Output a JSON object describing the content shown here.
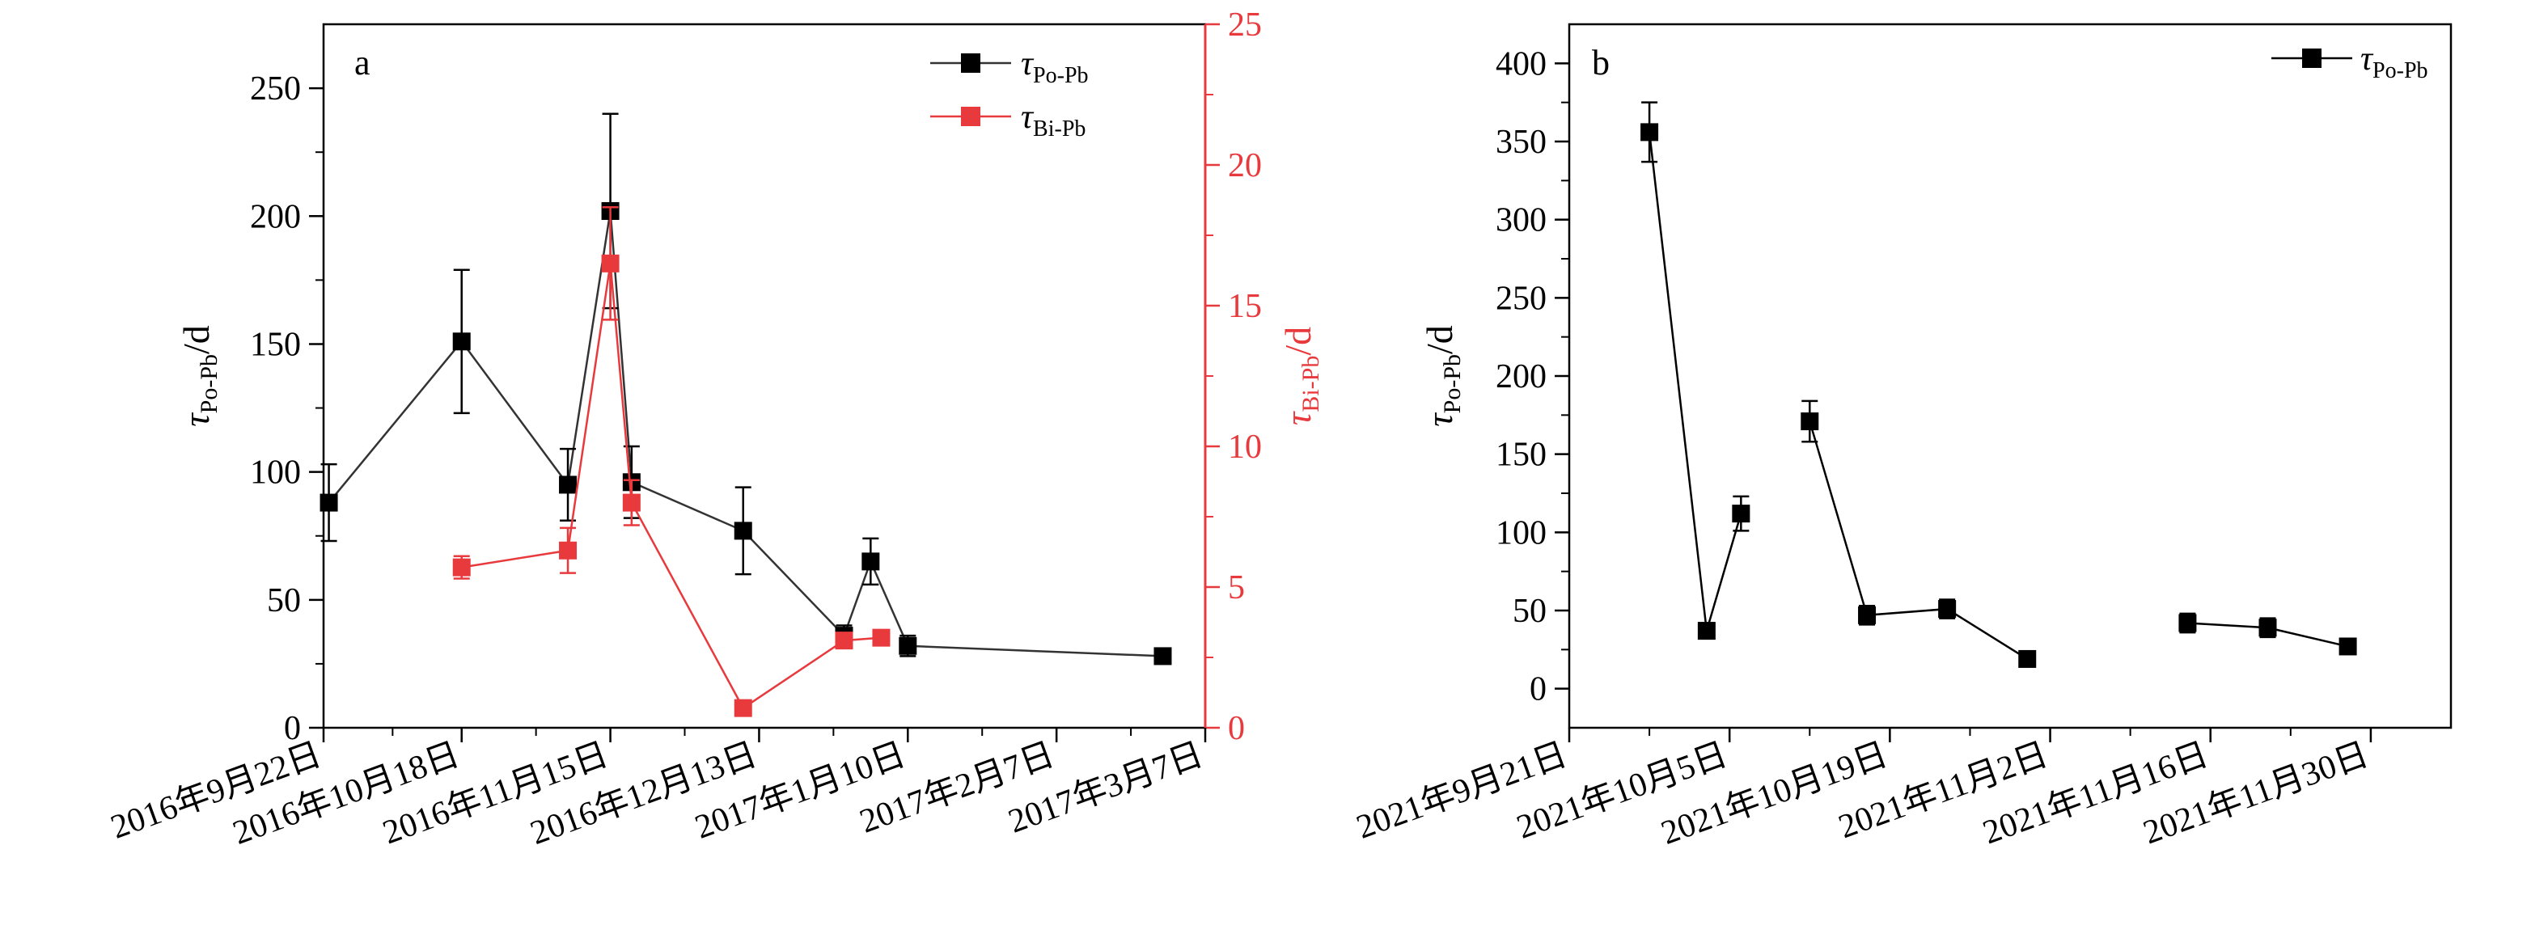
{
  "colors": {
    "black_series": "#000000",
    "black_line": "#333333",
    "red_series": "#e8393c"
  },
  "chart_data": [
    {
      "type": "line",
      "panel_label": "a",
      "x_date_ticks": [
        "2016-09-22",
        "2016-10-18",
        "2016-11-15",
        "2016-12-13",
        "2017-01-10",
        "2017-02-07",
        "2017-03-07"
      ],
      "x_tick_labels": [
        "2016年9月22日",
        "2016年10月18日",
        "2016年11月15日",
        "2016年12月13日",
        "2017年1月10日",
        "2017年2月7日",
        "2017年3月7日"
      ],
      "xlim": [
        "2016-09-22",
        "2017-03-07"
      ],
      "y_left": {
        "label_main": "τ",
        "label_sub": "Po-Pb",
        "label_unit": "/d",
        "lim": [
          0,
          275
        ],
        "ticks": [
          0,
          50,
          100,
          150,
          200,
          250
        ]
      },
      "y_right": {
        "label_main": "τ",
        "label_sub": "Bi-Pb",
        "label_unit": "/d",
        "lim": [
          0,
          25
        ],
        "ticks": [
          0,
          5,
          10,
          15,
          20,
          25
        ],
        "color": "#e8393c"
      },
      "legend_position": "top-right",
      "series": [
        {
          "name_main": "τ",
          "name_sub": "Po-Pb",
          "axis": "left",
          "color": "#000000",
          "line_color": "#333333",
          "points": [
            {
              "x": "2016-09-23",
              "y": 88,
              "err": 15
            },
            {
              "x": "2016-10-18",
              "y": 151,
              "err": 28
            },
            {
              "x": "2016-11-07",
              "y": 95,
              "err": 14
            },
            {
              "x": "2016-11-15",
              "y": 202,
              "err": 38
            },
            {
              "x": "2016-11-19",
              "y": 96,
              "err": 14
            },
            {
              "x": "2016-12-10",
              "y": 77,
              "err": 17
            },
            {
              "x": "2016-12-29",
              "y": 36,
              "err": 4
            },
            {
              "x": "2017-01-03",
              "y": 65,
              "err": 9
            },
            {
              "x": "2017-01-10",
              "y": 32,
              "err": 4
            },
            {
              "x": "2017-02-27",
              "y": 28,
              "err": 3
            }
          ]
        },
        {
          "name_main": "τ",
          "name_sub": "Bi-Pb",
          "axis": "right",
          "color": "#e8393c",
          "line_color": "#e8393c",
          "points": [
            {
              "x": "2016-10-18",
              "y": 5.7,
              "err": 0.4
            },
            {
              "x": "2016-11-07",
              "y": 6.3,
              "err": 0.8
            },
            {
              "x": "2016-11-15",
              "y": 16.5,
              "err": 2.0
            },
            {
              "x": "2016-11-19",
              "y": 8.0,
              "err": 0.8
            },
            {
              "x": "2016-12-10",
              "y": 0.7,
              "err": 0.2
            },
            {
              "x": "2016-12-29",
              "y": 3.1,
              "err": 0.2
            },
            {
              "x": "2017-01-05",
              "y": 3.2,
              "err": 0.2
            }
          ]
        }
      ]
    },
    {
      "type": "line",
      "panel_label": "b",
      "x_date_ticks": [
        "2021-09-21",
        "2021-10-05",
        "2021-10-19",
        "2021-11-02",
        "2021-11-16",
        "2021-11-30"
      ],
      "x_tick_labels": [
        "2021年9月21日",
        "2021年10月5日",
        "2021年10月19日",
        "2021年11月2日",
        "2021年11月16日",
        "2021年11月30日"
      ],
      "xlim": [
        "2021-09-21",
        "2021-12-07"
      ],
      "y_left": {
        "label_main": "τ",
        "label_sub": "Po-Pb",
        "label_unit": "/d",
        "lim": [
          -25,
          425
        ],
        "ticks": [
          0,
          50,
          100,
          150,
          200,
          250,
          300,
          350,
          400
        ]
      },
      "legend_position": "top-right",
      "series": [
        {
          "name_main": "τ",
          "name_sub": "Po-Pb",
          "axis": "left",
          "color": "#000000",
          "line_color": "#000000",
          "segments": [
            [
              {
                "x": "2021-09-28",
                "y": 356,
                "err": 19
              },
              {
                "x": "2021-10-03",
                "y": 37,
                "err": 5
              },
              {
                "x": "2021-10-06",
                "y": 112,
                "err": 11
              }
            ],
            [
              {
                "x": "2021-10-12",
                "y": 171,
                "err": 13
              },
              {
                "x": "2021-10-17",
                "y": 47,
                "err": 6
              },
              {
                "x": "2021-10-24",
                "y": 51,
                "err": 6
              },
              {
                "x": "2021-10-31",
                "y": 19,
                "err": 2
              }
            ],
            [
              {
                "x": "2021-11-14",
                "y": 42,
                "err": 6
              },
              {
                "x": "2021-11-21",
                "y": 39,
                "err": 6
              },
              {
                "x": "2021-11-28",
                "y": 27,
                "err": 2
              }
            ]
          ]
        }
      ]
    }
  ]
}
